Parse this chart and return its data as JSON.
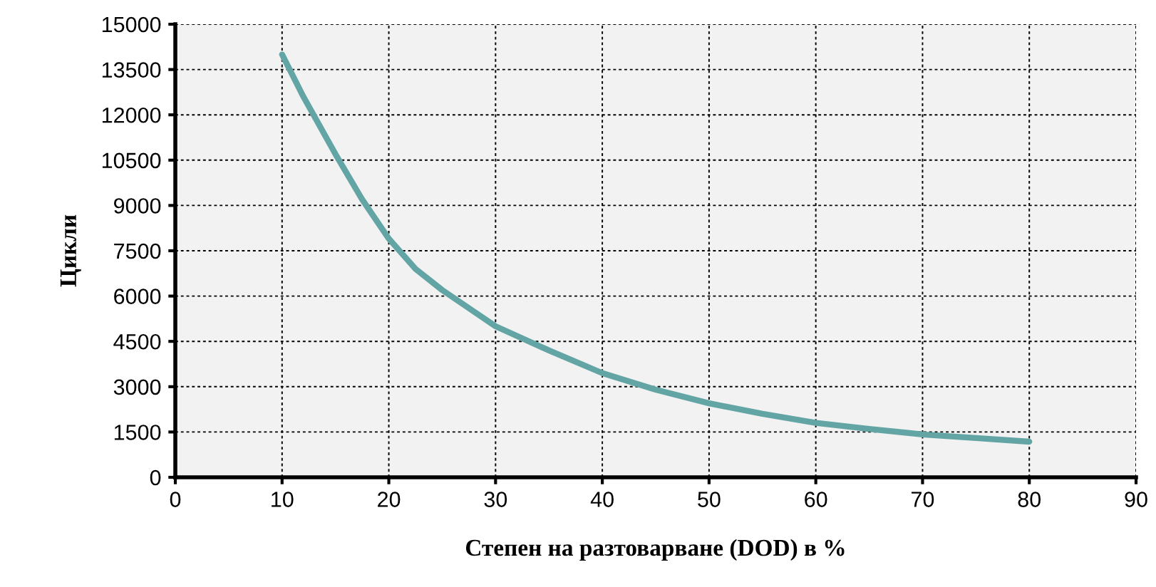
{
  "chart_data": {
    "type": "line",
    "xlabel": "Степен на разтоварване (DOD) в %",
    "ylabel": "Цикли",
    "x": [
      10,
      12,
      15,
      17.5,
      20,
      22.5,
      25,
      30,
      35,
      40,
      45,
      50,
      55,
      60,
      65,
      70,
      75,
      80
    ],
    "series": [
      {
        "color": "#63a5a5",
        "values": [
          14000,
          12600,
          10700,
          9200,
          7900,
          6900,
          6200,
          5000,
          4200,
          3450,
          2900,
          2450,
          2100,
          1800,
          1600,
          1420,
          1300,
          1180
        ]
      }
    ],
    "xlim": [
      0,
      90
    ],
    "xticks": [
      0,
      10,
      20,
      30,
      40,
      50,
      60,
      70,
      80,
      90
    ],
    "ylim": [
      0,
      15000
    ],
    "yticks": [
      0,
      1500,
      3000,
      4500,
      6000,
      7500,
      9000,
      10500,
      12000,
      13500,
      15000
    ],
    "grid": true,
    "marker": "none",
    "line_style": "solid"
  }
}
